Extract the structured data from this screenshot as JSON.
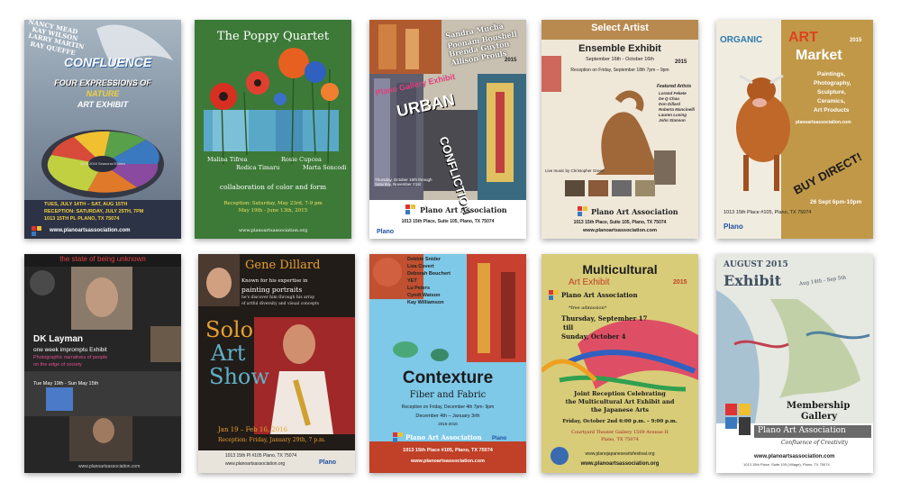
{
  "posters": [
    {
      "title": "CONFLUENCE",
      "names": [
        "NANCY MEAD",
        "KAY WILSON",
        "LARRY MARTIN",
        "RAY QUEFFE"
      ],
      "subtitle1": "FOUR EXPRESSIONS OF",
      "subtitle2": "NATURE",
      "subtitle3": "ART EXHIBIT",
      "wheel_label": "2015-2016 Seasonal Entries",
      "dates": "TUES, JULY 14TH – SAT, AUG 15TH",
      "reception": "RECEPTION: SATURDAY, JULY 25TH, 7PM",
      "address": "1013 15TH PL PLANO, TX 75074",
      "url": "www.planoartsassociation.com"
    },
    {
      "title": "The Poppy Quartet",
      "artists": [
        "Malina Tifrea",
        "Rosie Cupcea",
        "Rodica Timaru",
        "Marta Soncodi"
      ],
      "tagline": "collaboration of color and form",
      "reception": "Reception: Saturday, May 23rd, 7-9 pm",
      "dates": "May 19th - June 13th, 2015",
      "url": "www.planoartsassociation.org"
    },
    {
      "artists": [
        "Sandra Mucha",
        "Poonam Boushell",
        "Brenda Guyton",
        "Allison Prouls"
      ],
      "year": "2015",
      "gallery": "Plano Gallery Exhibit",
      "title1": "URBAN",
      "title2": "CONFLICTION",
      "dates": "Thursday, October 15th through Saturday, November 21st",
      "org": "Plano Art Association",
      "address": "1013 15th Place, Suite 105, Plano, TX 75074",
      "logo": "Plano"
    },
    {
      "header": "Select Artist",
      "title": "Ensemble Exhibit",
      "dates": "September 16th - October 16th",
      "year": "2015",
      "reception": "Reception on Friday, September 18th 7pm – 9pm",
      "featured_label": "Featured Artists",
      "featured": [
        "Lorand Fekete",
        "De Q Chau",
        "Don Dillard",
        "Roberta Mancinelli",
        "Lauren Lusing",
        "John Stanson"
      ],
      "music": "Live music by Christopher Green",
      "org": "Plano Art Association",
      "address": "1013 15th Place, Suite 105, Plano, TX 75074",
      "url": "www.planoartsassociation.com"
    },
    {
      "word1": "ORGANIC",
      "word2": "ART",
      "year": "2015",
      "word3": "Market",
      "items": [
        "Paintings,",
        "Photography,",
        "Sculpture,",
        "Ceramics,",
        "Art Products"
      ],
      "url": "planoartsassociation.com",
      "buy": "BUY DIRECT!",
      "date": "26 Sept  6pm-10pm",
      "address": "1013 15th Place #105, Plano, TX 75074",
      "logo": "Plano"
    },
    {
      "header": "the state of being unknown",
      "artist": "DK Layman",
      "line1": "one week impromptu Exhibit",
      "line2": "Photographic narratives of people",
      "line3": "on the edge of society",
      "dates": "Tue May 19th - Sun May 15th",
      "url": "www.planoartsassociation.com"
    },
    {
      "name": "Gene Dillard",
      "blurb1": "Known for his expertise in",
      "blurb2": "painting portraits",
      "blurb3": "he's discover him through his array",
      "blurb4": "of artful diversity and visual concepts",
      "solo1": "Solo",
      "solo2": "Art",
      "solo3": "Show",
      "dates": "Jan 19 – Feb 16, 2016",
      "reception": "Reception: Friday, January 29th, 7 p.m.",
      "address": "1013 15th Pl #105 Plano, TX 75074",
      "url": "www.planoartsassociation.org",
      "logo": "Plano"
    },
    {
      "artists": [
        "Debbie Snider",
        "Liza Covert",
        "Deborah Bouchert",
        "YET",
        "Lu Peters",
        "Cyndi Watson",
        "Kay Williamson"
      ],
      "title": "Contexture",
      "subtitle": "Fiber and Fabric",
      "reception": "Reception on Friday, December 4th  7pm- 9pm",
      "dates": "December 4th – January 3rth",
      "season": "2015-2016",
      "org": "Plano Art Association",
      "address": "1013 15th Place #105, Plano, TX 75074",
      "url": "www.planoartsassociation.com",
      "logo": "Plano"
    },
    {
      "title1": "Multicultural",
      "title2": "Art Exhibit",
      "year": "2015",
      "org": "Plano Art Association",
      "free": "*free admission*",
      "dates1": "Thursday, September 17",
      "dates2": "till",
      "dates3": "Sunday, October 4",
      "joint1": "Joint Reception Celebrating",
      "joint2": "the Multicultural Art Exhibit and",
      "joint3": "the Japanese Arts",
      "reception": "Friday, October 2nd 6:00 p.m. – 9:00 p.m.",
      "venue": "Courtyard Theater Gallery 1509 Avenue H",
      "city": "Plano, TX 75074",
      "url1": "www.planojapaneseartsfestival.org",
      "url2": "www.planoartsassociation.org"
    },
    {
      "month": "AUGUST 2015",
      "title": "Exhibit",
      "dates": "Aug 14th - Sep 5th",
      "gallery1": "Membership",
      "gallery2": "Gallery",
      "org": "Plano Art Association",
      "tagline": "Confluence of Creativity",
      "url": "www.planoartsassociation.com",
      "address": "1013 15th Place, Suite 105 (Village), Plano, TX 75074"
    }
  ]
}
